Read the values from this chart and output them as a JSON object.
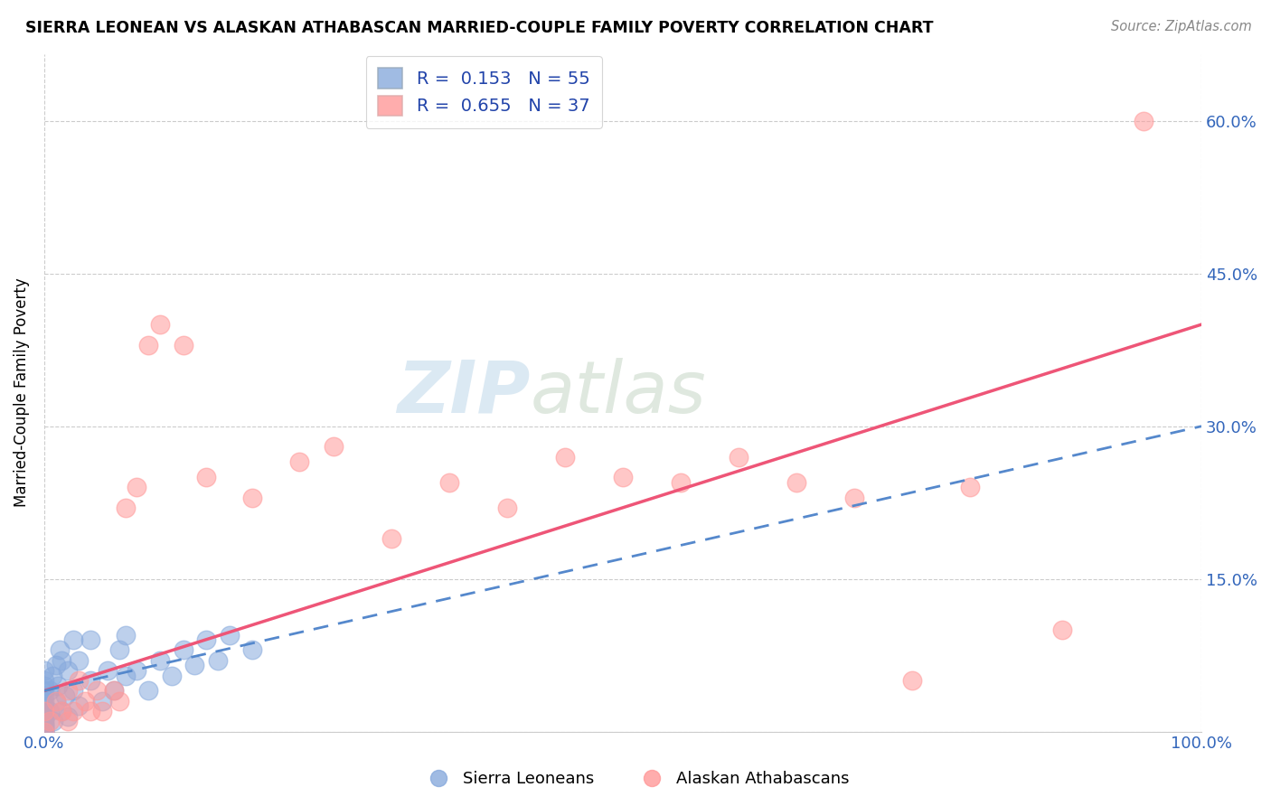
{
  "title": "SIERRA LEONEAN VS ALASKAN ATHABASCAN MARRIED-COUPLE FAMILY POVERTY CORRELATION CHART",
  "source": "Source: ZipAtlas.com",
  "ylabel_label": "Married-Couple Family Poverty",
  "legend1_label": "R =  0.153   N = 55",
  "legend2_label": "R =  0.655   N = 37",
  "legend_sub1": "Sierra Leoneans",
  "legend_sub2": "Alaskan Athabascans",
  "blue_color": "#88AADD",
  "pink_color": "#FF9999",
  "blue_line_color": "#5588CC",
  "pink_line_color": "#EE5577",
  "watermark_zip": "ZIP",
  "watermark_atlas": "atlas",
  "xmin": 0.0,
  "xmax": 1.0,
  "ymin": 0.0,
  "ymax": 0.666,
  "ytick_vals": [
    0.0,
    0.15,
    0.3,
    0.45,
    0.6
  ],
  "ytick_labels": [
    "",
    "15.0%",
    "30.0%",
    "45.0%",
    "60.0%"
  ],
  "blue_x": [
    0.0,
    0.0,
    0.0,
    0.0,
    0.0,
    0.0,
    0.0,
    0.0,
    0.0,
    0.0,
    0.0,
    0.0,
    0.0,
    0.0,
    0.0,
    0.0,
    0.0,
    0.0,
    0.0,
    0.0,
    0.005,
    0.005,
    0.007,
    0.008,
    0.01,
    0.01,
    0.012,
    0.013,
    0.015,
    0.015,
    0.018,
    0.02,
    0.02,
    0.025,
    0.025,
    0.03,
    0.03,
    0.04,
    0.04,
    0.05,
    0.055,
    0.06,
    0.065,
    0.07,
    0.07,
    0.08,
    0.09,
    0.1,
    0.11,
    0.12,
    0.13,
    0.14,
    0.15,
    0.16,
    0.18
  ],
  "blue_y": [
    0.0,
    0.0,
    0.0,
    0.002,
    0.004,
    0.005,
    0.007,
    0.008,
    0.01,
    0.012,
    0.015,
    0.018,
    0.02,
    0.025,
    0.03,
    0.035,
    0.04,
    0.045,
    0.05,
    0.06,
    0.02,
    0.04,
    0.055,
    0.01,
    0.03,
    0.065,
    0.045,
    0.08,
    0.02,
    0.07,
    0.035,
    0.015,
    0.06,
    0.04,
    0.09,
    0.025,
    0.07,
    0.05,
    0.09,
    0.03,
    0.06,
    0.04,
    0.08,
    0.055,
    0.095,
    0.06,
    0.04,
    0.07,
    0.055,
    0.08,
    0.065,
    0.09,
    0.07,
    0.095,
    0.08
  ],
  "pink_x": [
    0.0,
    0.0,
    0.005,
    0.01,
    0.015,
    0.02,
    0.02,
    0.025,
    0.03,
    0.035,
    0.04,
    0.045,
    0.05,
    0.06,
    0.065,
    0.07,
    0.08,
    0.09,
    0.1,
    0.12,
    0.14,
    0.18,
    0.22,
    0.25,
    0.3,
    0.35,
    0.4,
    0.45,
    0.5,
    0.55,
    0.6,
    0.65,
    0.7,
    0.75,
    0.8,
    0.88,
    0.95
  ],
  "pink_y": [
    0.0,
    0.02,
    0.01,
    0.03,
    0.02,
    0.01,
    0.04,
    0.02,
    0.05,
    0.03,
    0.02,
    0.04,
    0.02,
    0.04,
    0.03,
    0.22,
    0.24,
    0.38,
    0.4,
    0.38,
    0.25,
    0.23,
    0.265,
    0.28,
    0.19,
    0.245,
    0.22,
    0.27,
    0.25,
    0.245,
    0.27,
    0.245,
    0.23,
    0.05,
    0.24,
    0.1,
    0.6
  ],
  "pink_line_x0": 0.0,
  "pink_line_y0": 0.04,
  "pink_line_x1": 1.0,
  "pink_line_y1": 0.4,
  "blue_line_x0": 0.0,
  "blue_line_y0": 0.04,
  "blue_line_x1": 1.0,
  "blue_line_y1": 0.3
}
